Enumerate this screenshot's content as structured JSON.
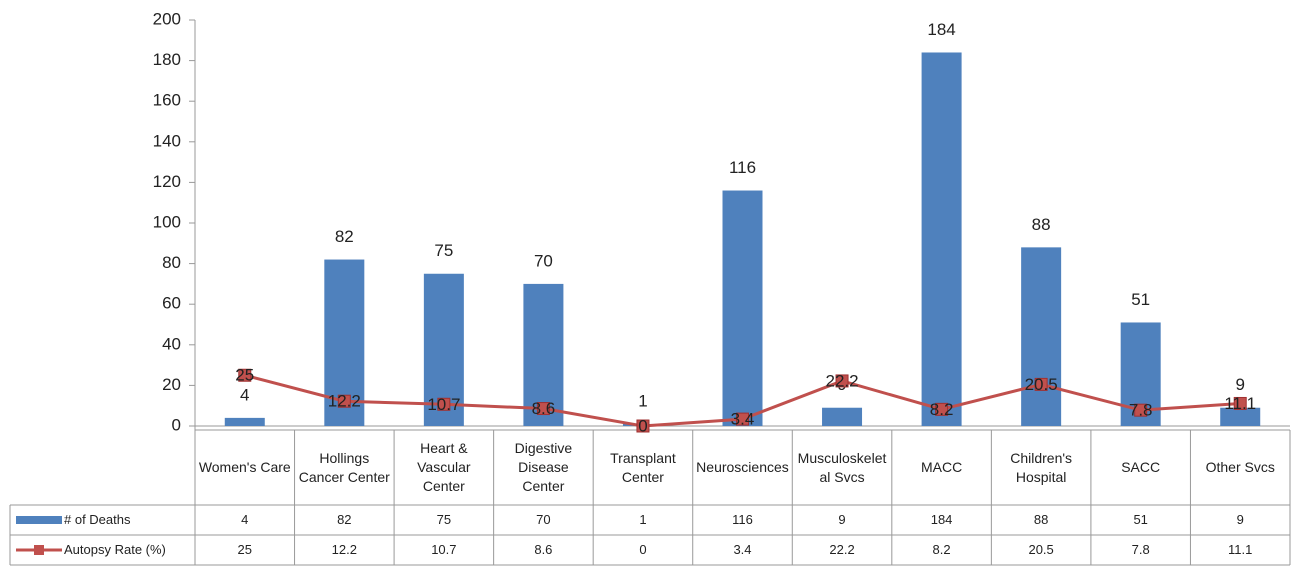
{
  "chart_data": {
    "type": "bar",
    "categories": [
      "Women's Care",
      "Hollings Cancer Center",
      "Heart & Vascular Center",
      "Digestive Disease Center",
      "Transplant Center",
      "Neurosciences",
      "Musculoskeletal Svcs",
      "MACC",
      "Children's Hospital",
      "SACC",
      "Other Svcs"
    ],
    "series": [
      {
        "name": "# of Deaths",
        "type": "bar",
        "color": "#4f81bd",
        "values": [
          4,
          82,
          75,
          70,
          1,
          116,
          9,
          184,
          88,
          51,
          9
        ]
      },
      {
        "name": "Autopsy Rate (%)",
        "type": "line",
        "color": "#c0504d",
        "values": [
          25,
          12.2,
          10.7,
          8.6,
          0,
          3.4,
          22.2,
          8.2,
          20.5,
          7.8,
          11.1
        ]
      }
    ],
    "ylim": [
      0,
      200
    ],
    "yticks": [
      0,
      20,
      40,
      60,
      80,
      100,
      120,
      140,
      160,
      180,
      200
    ],
    "grid": false
  }
}
